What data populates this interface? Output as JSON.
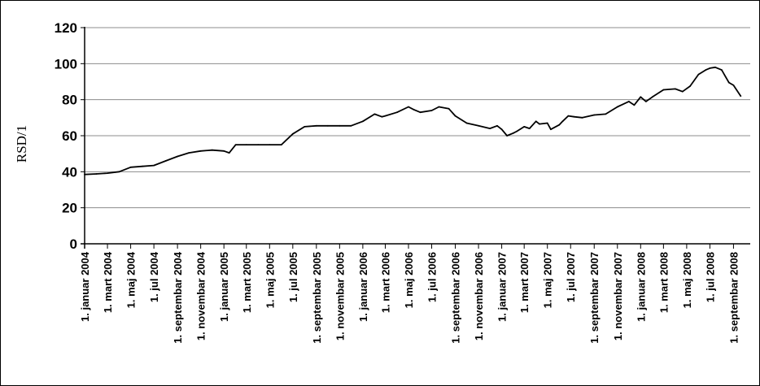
{
  "chart_data": {
    "type": "line",
    "ylabel": "RSD/1",
    "xlabel": "",
    "title": "",
    "ylim": [
      0,
      120
    ],
    "yticks": [
      0,
      20,
      40,
      60,
      80,
      100,
      120
    ],
    "grid": true,
    "legend": "none",
    "line_color": "#000000",
    "x_tick_labels": [
      "1. januar 2004",
      "1. mart 2004",
      "1. maj 2004",
      "1. jul 2004",
      "1. septembar 2004",
      "1. novembar 2004",
      "1. januar 2005",
      "1. mart 2005",
      "1. maj 2005",
      "1. jul 2005",
      "1. septembar 2005",
      "1. novembar 2005",
      "1. januar 2006",
      "1. mart 2006",
      "1. maj 2006",
      "1. jul 2006",
      "1. septembar 2006",
      "1. novembar 2006",
      "1. januar 2007",
      "1. mart 2007",
      "1. maj 2007",
      "1. jul 2007",
      "1. septembar 2007",
      "1. novembar 2007",
      "1. januar 2008",
      "1. mart 2008",
      "1. maj 2008",
      "1. jul 2008",
      "1. septembar 2008"
    ],
    "series": [
      {
        "x": [
          "2004-01-01",
          "2004-02-01",
          "2004-03-01",
          "2004-04-01",
          "2004-05-01",
          "2004-06-01",
          "2004-07-01",
          "2004-08-01",
          "2004-09-01",
          "2004-10-01",
          "2004-11-01",
          "2004-12-01",
          "2005-01-01",
          "2005-01-15",
          "2005-02-01",
          "2005-03-01",
          "2005-04-01",
          "2005-05-01",
          "2005-06-01",
          "2005-07-01",
          "2005-08-01",
          "2005-09-01",
          "2005-10-01",
          "2005-11-01",
          "2005-12-01",
          "2006-01-01",
          "2006-02-01",
          "2006-02-20",
          "2006-03-01",
          "2006-04-01",
          "2006-05-01",
          "2006-05-15",
          "2006-06-01",
          "2006-07-01",
          "2006-07-20",
          "2006-08-15",
          "2006-09-01",
          "2006-10-01",
          "2006-11-01",
          "2006-12-01",
          "2006-12-20",
          "2007-01-01",
          "2007-01-15",
          "2007-02-01",
          "2007-02-10",
          "2007-03-01",
          "2007-03-15",
          "2007-04-01",
          "2007-04-10",
          "2007-05-01",
          "2007-05-10",
          "2007-06-01",
          "2007-06-10",
          "2007-06-25",
          "2007-07-10",
          "2007-08-01",
          "2007-09-01",
          "2007-10-01",
          "2007-11-01",
          "2007-12-01",
          "2007-12-15",
          "2008-01-01",
          "2008-01-15",
          "2008-02-01",
          "2008-03-01",
          "2008-04-01",
          "2008-04-20",
          "2008-05-10",
          "2008-06-01",
          "2008-06-20",
          "2008-07-01",
          "2008-07-15",
          "2008-08-01",
          "2008-08-20",
          "2008-09-01",
          "2008-09-20"
        ],
        "values": [
          38.5,
          38.8,
          39.2,
          40,
          42.5,
          43,
          43.5,
          46,
          48.5,
          50.5,
          51.5,
          52,
          51.5,
          50.5,
          55,
          55,
          55,
          55,
          55,
          61,
          65,
          65.5,
          65.5,
          65.5,
          65.5,
          68,
          72,
          70.5,
          71,
          73,
          76,
          74.5,
          73,
          74,
          76,
          75,
          71,
          67,
          65.5,
          64,
          65.5,
          63.5,
          60,
          61.5,
          62.5,
          65,
          64,
          68,
          66.5,
          67,
          63.5,
          66,
          68,
          71,
          70.5,
          70,
          71.5,
          72,
          76,
          79,
          77,
          81.5,
          79,
          81.5,
          85.5,
          86,
          84.5,
          87.5,
          94,
          96.5,
          97.5,
          98,
          96.5,
          89.5,
          88,
          82
        ]
      }
    ]
  }
}
